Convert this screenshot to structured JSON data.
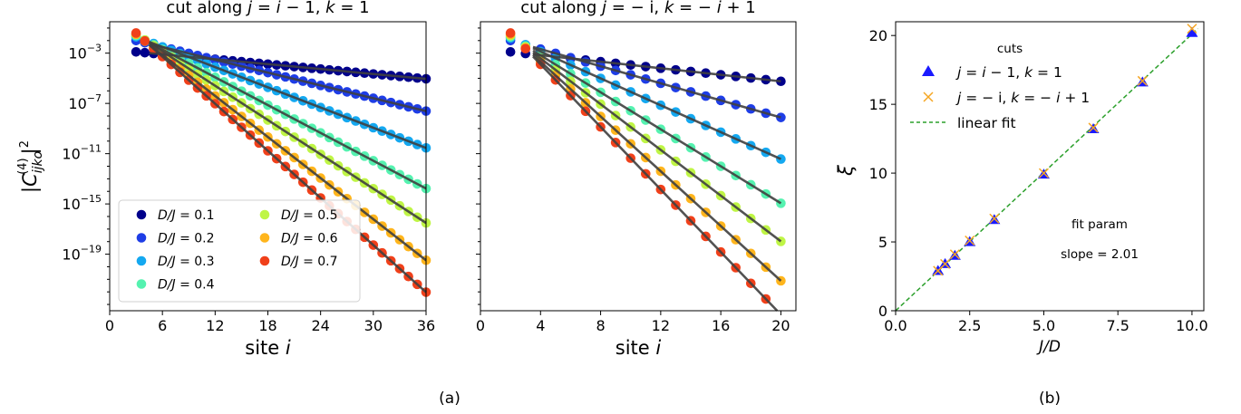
{
  "chart_data": [
    {
      "type": "scatter",
      "panel": "a-left",
      "title": "cut along j = i − 1, k = 1",
      "xlabel": "site i",
      "ylabel": "|C(4)ijko|²",
      "xlim": [
        0,
        36
      ],
      "y_log10_range": [
        -23.5,
        -0.5
      ],
      "xticks": [
        0,
        6,
        12,
        18,
        24,
        30,
        36
      ],
      "yticks_log10": [
        -3,
        -7,
        -11,
        -15,
        -19
      ],
      "legend_placement": "lower-left",
      "legend_columns": 2,
      "x_start": 3,
      "x_end": 36,
      "series": [
        {
          "name": "D/J = 0.1",
          "color": "#00008b",
          "log10_start": -2.9,
          "log10_slope": -0.065
        },
        {
          "name": "D/J = 0.2",
          "color": "#1e3de6",
          "log10_start": -2.0,
          "log10_slope": -0.17
        },
        {
          "name": "D/J = 0.3",
          "color": "#14a8f0",
          "log10_start": -1.7,
          "log10_slope": -0.268
        },
        {
          "name": "D/J = 0.4",
          "color": "#55f2b0",
          "log10_start": -1.6,
          "log10_slope": -0.369
        },
        {
          "name": "D/J = 0.5",
          "color": "#bff545",
          "log10_start": -1.5,
          "log10_slope": -0.455
        },
        {
          "name": "D/J = 0.6",
          "color": "#ffb51c",
          "log10_start": -1.5,
          "log10_slope": -0.545
        },
        {
          "name": "D/J = 0.7",
          "color": "#f0401a",
          "log10_start": -1.4,
          "log10_slope": -0.625
        }
      ]
    },
    {
      "type": "scatter",
      "panel": "a-right",
      "title": "cut along j = − i, k = − i + 1",
      "xlabel": "site i",
      "xlim": [
        0,
        21
      ],
      "y_log10_range": [
        -23.5,
        -0.5
      ],
      "xticks": [
        0,
        4,
        8,
        12,
        16,
        20
      ],
      "x_start": 2,
      "x_end": 20,
      "series": [
        {
          "name": "D/J = 0.1",
          "color": "#00008b",
          "log10_start": -2.9,
          "log10_slope": -0.13
        },
        {
          "name": "D/J = 0.2",
          "color": "#1e3de6",
          "log10_start": -2.0,
          "log10_slope": -0.34
        },
        {
          "name": "D/J = 0.3",
          "color": "#14a8f0",
          "log10_start": -1.8,
          "log10_slope": -0.535
        },
        {
          "name": "D/J = 0.4",
          "color": "#55f2b0",
          "log10_start": -1.7,
          "log10_slope": -0.736
        },
        {
          "name": "D/J = 0.5",
          "color": "#bff545",
          "log10_start": -1.6,
          "log10_slope": -0.91
        },
        {
          "name": "D/J = 0.6",
          "color": "#ffb51c",
          "log10_start": -1.5,
          "log10_slope": -1.09
        },
        {
          "name": "D/J = 0.7",
          "color": "#f0401a",
          "log10_start": -1.4,
          "log10_slope": -1.245
        }
      ]
    },
    {
      "type": "scatter",
      "panel": "b",
      "xlabel": "J/D",
      "ylabel": "ξ",
      "xlim": [
        0,
        10.4
      ],
      "ylim": [
        0,
        21
      ],
      "xticks": [
        0.0,
        2.5,
        5.0,
        7.5,
        10.0
      ],
      "yticks": [
        0,
        5,
        10,
        15,
        20
      ],
      "legend_title": "cuts",
      "legend_placement": "upper-left",
      "series": [
        {
          "name": "j = i − 1, k = 1",
          "marker": "triangle",
          "color": "#1a1aff",
          "x": [
            1.43,
            1.67,
            2.0,
            2.5,
            3.33,
            5.0,
            6.67,
            8.33,
            10.0
          ],
          "y": [
            2.9,
            3.4,
            4.0,
            5.0,
            6.6,
            9.9,
            13.2,
            16.6,
            20.2
          ]
        },
        {
          "name": "j = − i, k = − i + 1",
          "marker": "x",
          "color": "#f5a623",
          "x": [
            1.43,
            1.67,
            2.0,
            2.5,
            3.33,
            5.0,
            6.67,
            8.33,
            10.0
          ],
          "y": [
            2.9,
            3.4,
            4.1,
            5.1,
            6.7,
            10.0,
            13.3,
            16.7,
            20.5
          ]
        },
        {
          "name": "linear fit",
          "line_style": "dashed",
          "color": "#2ca02c",
          "slope": 2.01,
          "intercept": 0
        }
      ],
      "annotations": [
        "fit param",
        "slope = 2.01"
      ]
    }
  ],
  "captions": {
    "a": "(a)",
    "b": "(b)"
  }
}
